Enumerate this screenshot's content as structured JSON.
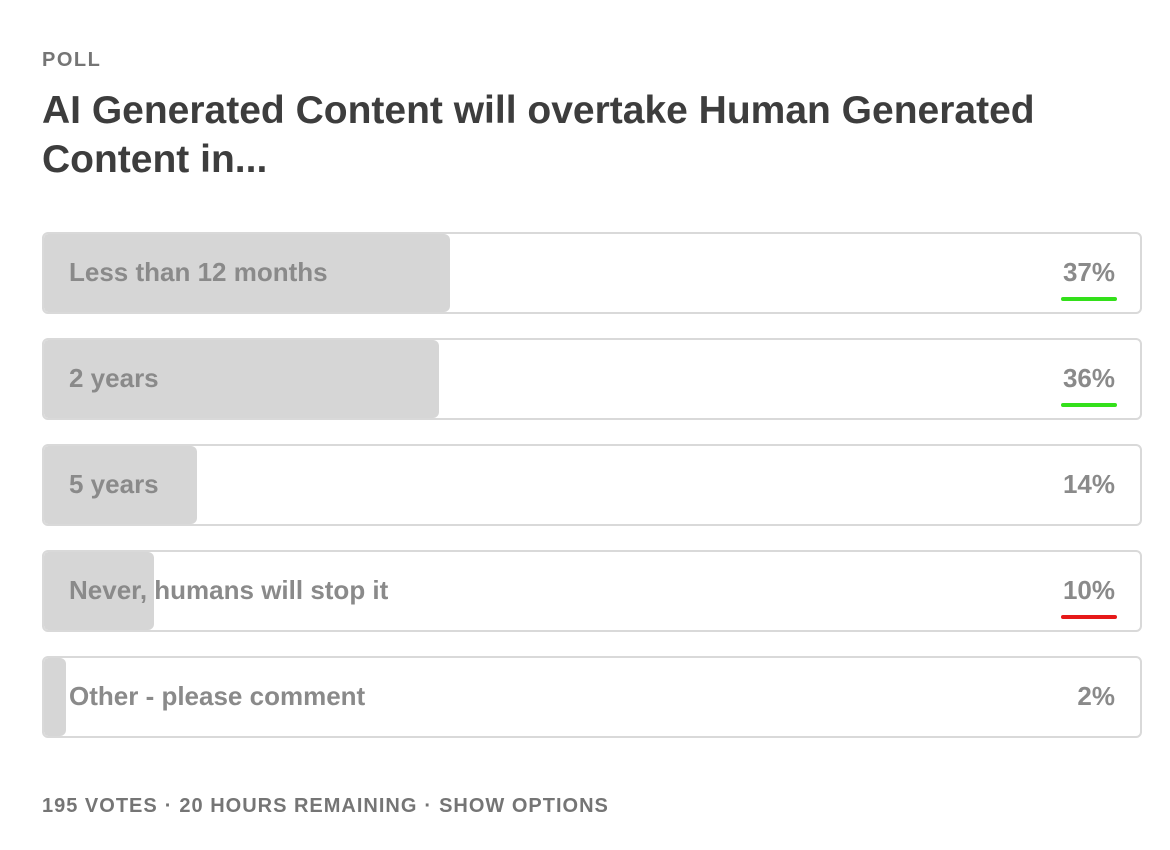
{
  "poll": {
    "label": "POLL",
    "question": "AI Generated Content will overtake Human Generated Content in...",
    "options": [
      {
        "label": "Less than 12 months",
        "percent_text": "37%",
        "fill_fraction": 0.37,
        "mark_color": "#33e01a"
      },
      {
        "label": "2 years",
        "percent_text": "36%",
        "fill_fraction": 0.36,
        "mark_color": "#33e01a"
      },
      {
        "label": "5 years",
        "percent_text": "14%",
        "fill_fraction": 0.14,
        "mark_color": null
      },
      {
        "label": "Never, humans will stop it",
        "percent_text": "10%",
        "fill_fraction": 0.1,
        "mark_color": "#e61919"
      },
      {
        "label": "Other - please comment",
        "percent_text": "2%",
        "fill_fraction": 0.02,
        "mark_color": null
      }
    ]
  },
  "footer": {
    "votes": "195 VOTES",
    "separator": "·",
    "time_remaining": "20 HOURS REMAINING",
    "show_options": "SHOW OPTIONS"
  },
  "colors": {
    "fill": "#d6d6d6",
    "border": "#d9d9d9",
    "text_muted": "#8a8a8a",
    "title": "#3d3d3d",
    "highlight_green": "#33e01a",
    "highlight_red": "#e61919"
  }
}
